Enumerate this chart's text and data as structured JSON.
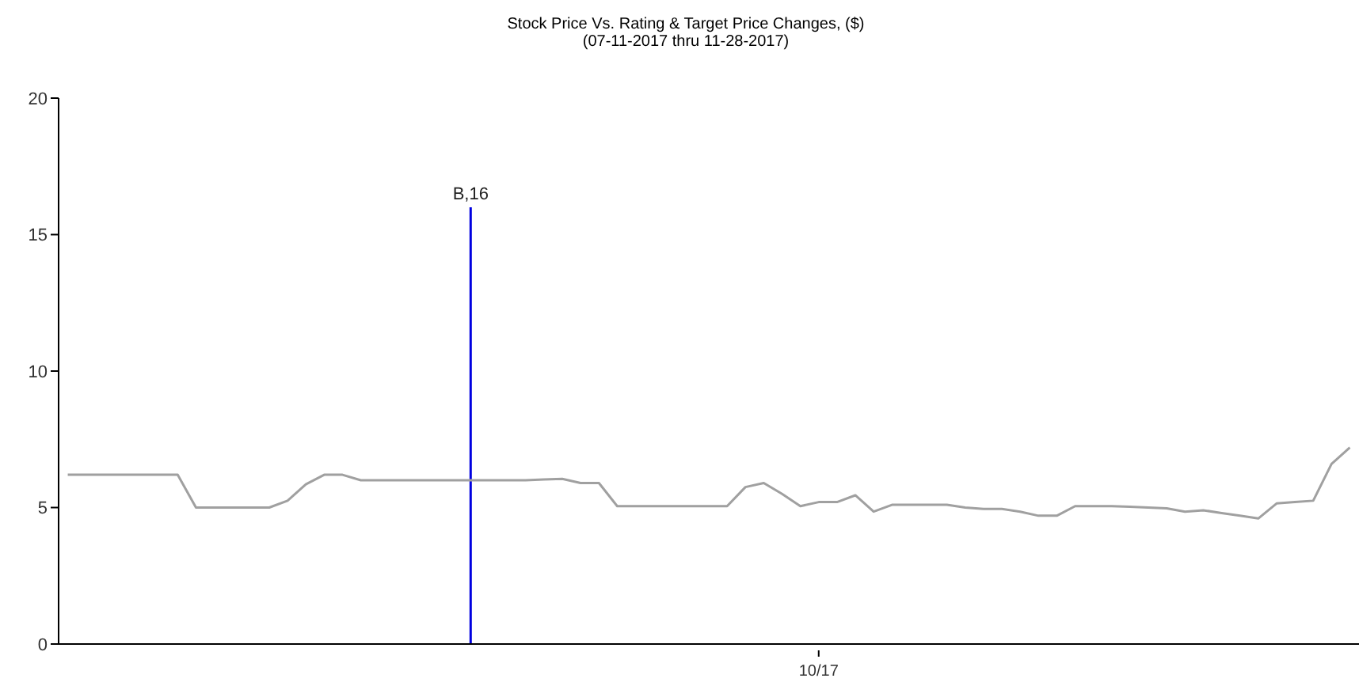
{
  "chart_data": {
    "type": "line",
    "title": "Stock Price Vs. Rating & Target Price Changes, ($)",
    "subtitle": "(07-11-2017 thru 11-28-2017)",
    "categories": [
      null,
      null,
      null,
      null,
      null,
      null,
      null,
      null,
      null,
      null,
      null,
      null,
      null,
      null,
      null,
      null,
      null,
      null,
      null,
      null,
      null,
      null,
      null,
      null,
      null,
      null,
      null,
      null,
      null,
      null,
      null,
      null,
      null,
      null,
      null,
      null,
      null,
      null,
      null,
      null,
      null,
      "10/17",
      null,
      null,
      null,
      null,
      null,
      null,
      null,
      null,
      null,
      null,
      null,
      null,
      null,
      null,
      null,
      null,
      null,
      null,
      null,
      null,
      null,
      null,
      null,
      null,
      null,
      null,
      null,
      null,
      null
    ],
    "ylim": [
      0,
      20
    ],
    "yticks": [
      0,
      5,
      10,
      15,
      20
    ],
    "grid": false,
    "legend": false,
    "marker": "none",
    "series": [
      {
        "color": "#a0a0a0",
        "values": [
          6.2,
          6.2,
          6.2,
          6.2,
          6.2,
          6.2,
          6.2,
          5.0,
          5.0,
          5.0,
          5.0,
          5.0,
          5.25,
          5.85,
          6.2,
          6.2,
          6.0,
          6.0,
          6.0,
          6.0,
          6.0,
          6.0,
          6.0,
          6.0,
          6.0,
          6.0,
          6.03,
          6.05,
          5.9,
          5.9,
          5.05,
          5.05,
          5.05,
          5.05,
          5.05,
          5.05,
          5.05,
          5.75,
          5.9,
          5.5,
          5.05,
          5.2,
          5.2,
          5.45,
          4.85,
          5.1,
          5.1,
          5.1,
          5.1,
          5.0,
          4.95,
          4.95,
          4.85,
          4.7,
          4.7,
          5.05,
          5.05,
          5.05,
          5.03,
          5.0,
          4.97,
          4.85,
          4.9,
          4.8,
          4.7,
          4.6,
          5.15,
          5.2,
          5.25,
          6.6,
          7.2
        ]
      },
      {
        "type": "bar",
        "color": "#0000e0",
        "values": [
          null,
          null,
          null,
          null,
          null,
          null,
          null,
          null,
          null,
          null,
          null,
          null,
          null,
          null,
          null,
          null,
          null,
          null,
          null,
          null,
          null,
          null,
          16,
          null,
          null,
          null,
          null,
          null,
          null,
          null,
          null,
          null,
          null,
          null,
          null,
          null,
          null,
          null,
          null,
          null,
          null,
          null,
          null,
          null,
          null,
          null,
          null,
          null,
          null,
          null,
          null,
          null,
          null,
          null,
          null,
          null,
          null,
          null,
          null,
          null,
          null,
          null,
          null,
          null,
          null,
          null,
          null,
          null,
          null,
          null,
          null
        ],
        "value_labels": [
          null,
          null,
          null,
          null,
          null,
          null,
          null,
          null,
          null,
          null,
          null,
          null,
          null,
          null,
          null,
          null,
          null,
          null,
          null,
          null,
          null,
          null,
          "B,16",
          null,
          null,
          null,
          null,
          null,
          null,
          null,
          null,
          null,
          null,
          null,
          null,
          null,
          null,
          null,
          null,
          null,
          null,
          null,
          null,
          null,
          null,
          null,
          null,
          null,
          null,
          null,
          null,
          null,
          null,
          null,
          null,
          null,
          null,
          null,
          null,
          null,
          null,
          null,
          null,
          null,
          null,
          null,
          null,
          null,
          null,
          null,
          null
        ]
      }
    ]
  }
}
